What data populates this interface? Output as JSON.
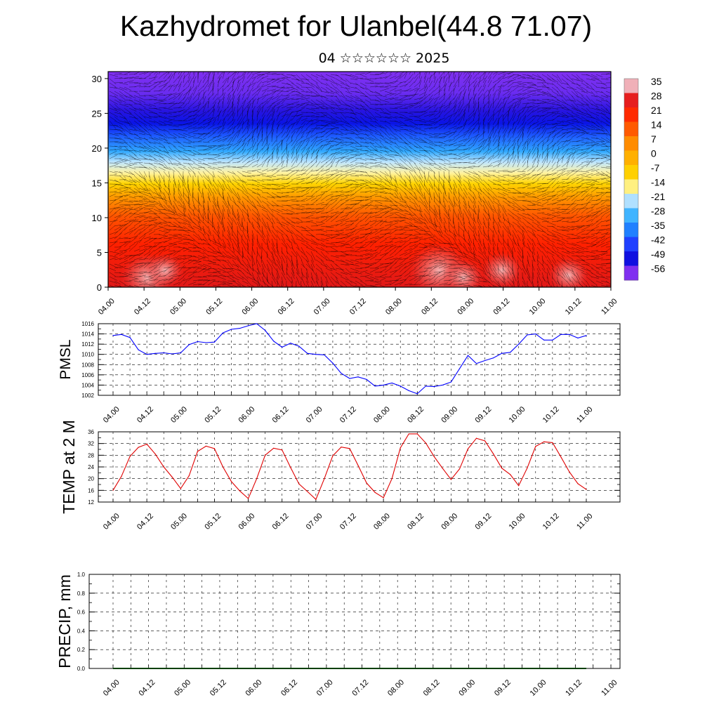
{
  "header": {
    "title": "Kazhydromet for Ulanbel(44.8 71.07)",
    "subtitle": "04 ☆☆☆☆☆☆ 2025"
  },
  "chart_data": [
    {
      "type": "heatmap",
      "title": "",
      "xlabel": "",
      "ylabel": "",
      "x_tick_labels": [
        "04.00",
        "04.12",
        "05.00",
        "05.12",
        "06.00",
        "06.12",
        "07.00",
        "07.12",
        "08.00",
        "08.12",
        "09.00",
        "09.12",
        "10.00",
        "10.12",
        "11.00"
      ],
      "ylim": [
        0,
        31
      ],
      "y_ticks": [
        0,
        5,
        10,
        15,
        20,
        25,
        30
      ],
      "colorbar": {
        "tick_labels": [
          "35",
          "28",
          "21",
          "14",
          "7",
          "0",
          "-7",
          "-14",
          "-21",
          "-28",
          "-35",
          "-42",
          "-49",
          "-56"
        ],
        "colors": [
          "#f0b0b8",
          "#e61e1e",
          "#ff2a00",
          "#ff5a00",
          "#ff8c00",
          "#ffb000",
          "#ffd000",
          "#fff080",
          "#b0e0ff",
          "#40b4ff",
          "#2080ff",
          "#2040ff",
          "#1010e0",
          "#8030f0"
        ]
      },
      "field": "temperature with wind vectors",
      "grid": false
    },
    {
      "type": "line",
      "title": "",
      "xlabel": "",
      "ylabel": "PMSL",
      "x_tick_labels": [
        "04.00",
        "04.12",
        "05.00",
        "05.12",
        "06.00",
        "06.12",
        "07.00",
        "07.12",
        "08.00",
        "08.12",
        "09.00",
        "09.12",
        "10.00",
        "10.12",
        "11.00"
      ],
      "ylim": [
        1002,
        1016
      ],
      "y_ticks": [
        1002,
        1004,
        1006,
        1008,
        1010,
        1012,
        1014,
        1016
      ],
      "grid": true,
      "color": "#0000ff",
      "x": [
        0,
        3,
        6,
        9,
        12,
        15,
        18,
        21,
        24,
        27,
        30,
        33,
        36,
        39,
        42,
        45,
        48,
        51,
        54,
        57,
        60,
        63,
        66,
        69,
        72,
        75,
        78,
        81,
        84,
        87,
        90,
        93,
        96,
        99,
        102,
        105,
        108,
        111,
        114,
        117,
        120,
        123,
        126,
        129,
        132,
        135,
        138,
        141,
        144,
        147,
        150,
        153,
        156,
        159,
        162,
        165,
        168
      ],
      "values": [
        1013.7,
        1013.9,
        1013.3,
        1010.9,
        1010.0,
        1010.2,
        1010.3,
        1010.1,
        1010.3,
        1011.9,
        1012.5,
        1012.3,
        1012.4,
        1014.2,
        1014.9,
        1015.1,
        1015.6,
        1016.0,
        1014.7,
        1012.6,
        1011.4,
        1012.2,
        1011.6,
        1010.2,
        1010.0,
        1009.9,
        1008.3,
        1006.3,
        1005.3,
        1005.6,
        1005.1,
        1003.8,
        1004.0,
        1004.4,
        1003.8,
        1002.9,
        1002.3,
        1003.8,
        1003.7,
        1004.0,
        1004.6,
        1007.2,
        1009.8,
        1008.2,
        1008.8,
        1009.3,
        1010.2,
        1010.4,
        1012.0,
        1013.8,
        1014.0,
        1012.8,
        1012.8,
        1013.9,
        1013.9,
        1013.2,
        1013.7
      ]
    },
    {
      "type": "line",
      "title": "",
      "xlabel": "",
      "ylabel": "TEMP at 2 M",
      "x_tick_labels": [
        "04.00",
        "04.12",
        "05.00",
        "05.12",
        "06.00",
        "06.12",
        "07.00",
        "07.12",
        "08.00",
        "08.12",
        "09.00",
        "09.12",
        "10.00",
        "10.12",
        "11.00"
      ],
      "ylim": [
        12,
        36
      ],
      "y_ticks": [
        12,
        16,
        20,
        24,
        28,
        32,
        36
      ],
      "grid": true,
      "color": "#e00000",
      "x": [
        0,
        3,
        6,
        9,
        12,
        15,
        18,
        21,
        24,
        27,
        30,
        33,
        36,
        39,
        42,
        45,
        48,
        51,
        54,
        57,
        60,
        63,
        66,
        69,
        72,
        75,
        78,
        81,
        84,
        87,
        90,
        93,
        96,
        99,
        102,
        105,
        108,
        111,
        114,
        117,
        120,
        123,
        126,
        129,
        132,
        135,
        138,
        141,
        144,
        147,
        150,
        153,
        156,
        159,
        162,
        165,
        168
      ],
      "values": [
        16.0,
        20.8,
        27.6,
        30.7,
        31.8,
        28.4,
        24.0,
        20.5,
        16.6,
        21.0,
        29.3,
        31.1,
        30.3,
        24.0,
        19.0,
        15.8,
        13.2,
        20.0,
        28.0,
        30.4,
        29.8,
        23.8,
        18.2,
        15.6,
        12.9,
        20.0,
        27.8,
        30.8,
        30.3,
        24.5,
        18.5,
        15.3,
        13.5,
        20.0,
        30.5,
        35.3,
        35.3,
        32.2,
        27.5,
        23.5,
        19.7,
        23.3,
        30.2,
        33.8,
        32.9,
        28.5,
        23.6,
        21.4,
        17.6,
        23.6,
        31.0,
        32.6,
        32.3,
        27.4,
        22.3,
        18.3,
        16.3
      ]
    },
    {
      "type": "line",
      "title": "",
      "xlabel": "",
      "ylabel": "PRECIP, mm",
      "x_tick_labels": [
        "04.00",
        "04.12",
        "05.00",
        "05.12",
        "06.00",
        "06.12",
        "07.00",
        "07.12",
        "08.00",
        "08.12",
        "09.00",
        "09.12",
        "10.00",
        "10.12",
        "11.00"
      ],
      "ylim": [
        0.0,
        1.0
      ],
      "y_tick_labels": [
        "0.0",
        "0.2",
        "0.4",
        "0.6",
        "0.8",
        "1.0"
      ],
      "grid": true,
      "color": "#004000",
      "x": [
        0,
        168
      ],
      "values": [
        0.0,
        0.0
      ]
    }
  ]
}
